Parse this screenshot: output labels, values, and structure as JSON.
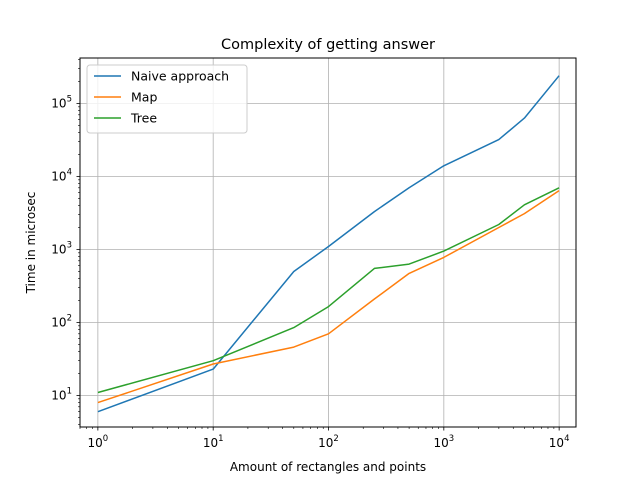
{
  "chart_data": {
    "type": "line",
    "title": "Complexity of getting answer",
    "xlabel": "Amount of rectangles and points",
    "ylabel": "Time in microsec",
    "xscale": "log",
    "yscale": "log",
    "xlim": [
      0.7,
      14000
    ],
    "ylim": [
      3.7,
      420000
    ],
    "grid": true,
    "legend_position": "upper left",
    "x_ticks": [
      {
        "value": 1,
        "base": "10",
        "exp": "0"
      },
      {
        "value": 10,
        "base": "10",
        "exp": "1"
      },
      {
        "value": 100,
        "base": "10",
        "exp": "2"
      },
      {
        "value": 1000,
        "base": "10",
        "exp": "3"
      },
      {
        "value": 10000,
        "base": "10",
        "exp": "4"
      }
    ],
    "y_ticks": [
      {
        "value": 10,
        "base": "10",
        "exp": "1"
      },
      {
        "value": 100,
        "base": "10",
        "exp": "2"
      },
      {
        "value": 1000,
        "base": "10",
        "exp": "3"
      },
      {
        "value": 10000,
        "base": "10",
        "exp": "4"
      },
      {
        "value": 100000,
        "base": "10",
        "exp": "5"
      }
    ],
    "x": [
      1,
      10,
      50,
      100,
      250,
      500,
      1000,
      3000,
      5000,
      10000
    ],
    "series": [
      {
        "name": "Naive approach",
        "color": "#1f77b4",
        "values": [
          6,
          23,
          500,
          1100,
          3300,
          7000,
          14000,
          32000,
          63000,
          240000
        ]
      },
      {
        "name": "Map",
        "color": "#ff7f0e",
        "values": [
          8,
          27,
          46,
          70,
          210,
          470,
          780,
          2000,
          3100,
          6400
        ]
      },
      {
        "name": "Tree",
        "color": "#2ca02c",
        "values": [
          11,
          30,
          85,
          165,
          550,
          630,
          950,
          2200,
          4100,
          7000
        ]
      }
    ]
  }
}
